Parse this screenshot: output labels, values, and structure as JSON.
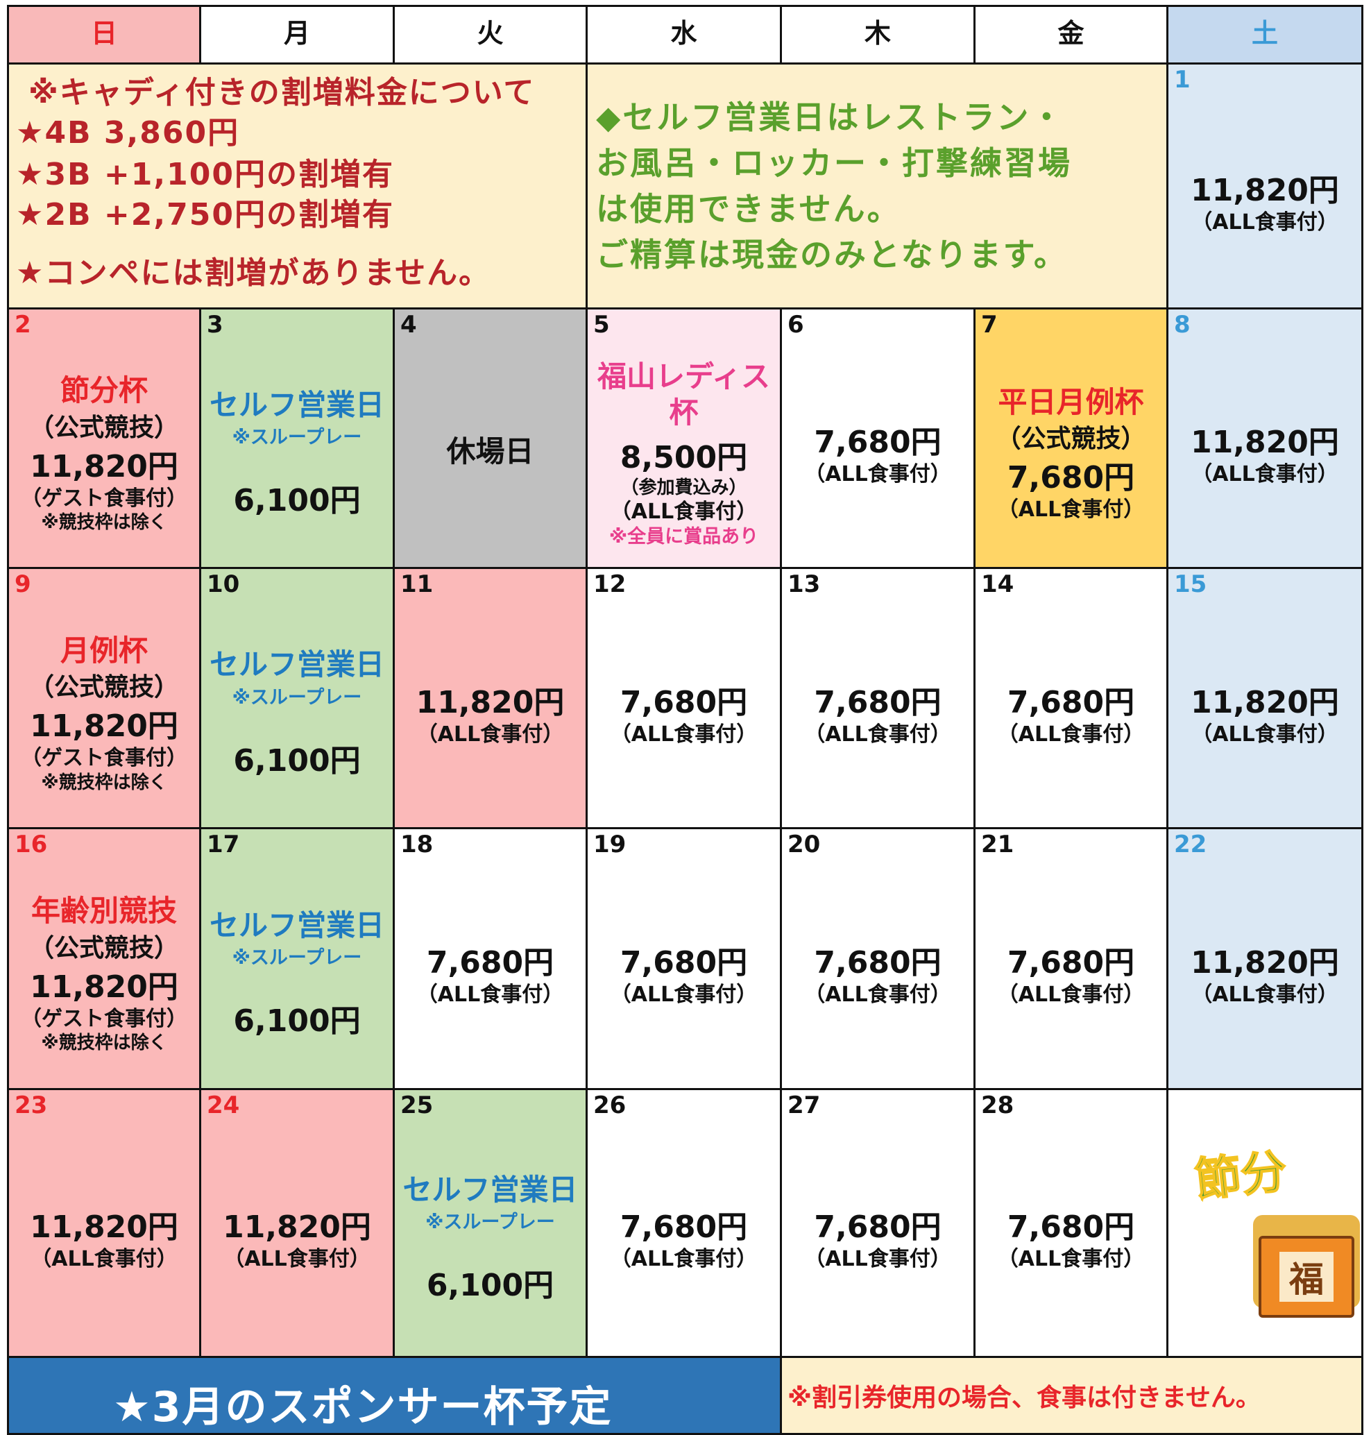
{
  "weekdays": [
    {
      "label": "日",
      "bg": "#f9b9b9",
      "color": "#e8252a"
    },
    {
      "label": "月",
      "bg": "#ffffff",
      "color": "#111111"
    },
    {
      "label": "火",
      "bg": "#ffffff",
      "color": "#111111"
    },
    {
      "label": "水",
      "bg": "#ffffff",
      "color": "#111111"
    },
    {
      "label": "木",
      "bg": "#ffffff",
      "color": "#111111"
    },
    {
      "label": "金",
      "bg": "#ffffff",
      "color": "#111111"
    },
    {
      "label": "土",
      "bg": "#c5d9ef",
      "color": "#3a9ad6"
    }
  ],
  "notice_caddie": [
    "※キャディ付きの割増料金について",
    "★4B 3,860円",
    "★3B +1,100円の割増有",
    "★2B +2,750円の割増有",
    "★コンペには割増がありません。"
  ],
  "notice_self": [
    "◆セルフ営業日はレストラン・",
    "お風呂・ロッカー・打撃練習場",
    "は使用できません。",
    "ご精算は現金のみとなります。"
  ],
  "first_day": {
    "day": "1",
    "bg": "#dbe8f4",
    "day_color": "#3a9ad6",
    "price": "11,820円",
    "meal": "（ALL食事付）"
  },
  "weeks": [
    [
      {
        "day": "2",
        "bg": "#fbb9b9",
        "day_color": "#e8252a",
        "event_color": "#e8252a",
        "event": "節分杯",
        "sub": "（公式競技）",
        "price": "11,820円",
        "meal": "（ゲスト食事付）",
        "note": "※競技枠は除く"
      },
      {
        "day": "3",
        "bg": "#c6e0b4",
        "day_color": "#111111",
        "event_color": "#1f7bc0",
        "event": "セルフ営業日",
        "self_note": "※スループレー",
        "price": "6,100円"
      },
      {
        "day": "4",
        "bg": "#c0c0c0",
        "day_color": "#111111",
        "event_color": "#111111",
        "event": "休場日"
      },
      {
        "day": "5",
        "bg": "#fde6ee",
        "day_color": "#111111",
        "event_color": "#e83e8c",
        "event": "福山レディス杯",
        "price": "8,500円",
        "fee": "（参加費込み）",
        "meal": "（ALL食事付）",
        "prize": "※全員に賞品あり"
      },
      {
        "day": "6",
        "bg": "#ffffff",
        "day_color": "#111111",
        "price": "7,680円",
        "meal": "（ALL食事付）"
      },
      {
        "day": "7",
        "bg": "#ffd566",
        "day_color": "#111111",
        "event_color": "#e8252a",
        "event": "平日月例杯",
        "sub": "（公式競技）",
        "price": "7,680円",
        "meal": "（ALL食事付）"
      },
      {
        "day": "8",
        "bg": "#dbe8f4",
        "day_color": "#3a9ad6",
        "price": "11,820円",
        "meal": "（ALL食事付）"
      }
    ],
    [
      {
        "day": "9",
        "bg": "#fbb9b9",
        "day_color": "#e8252a",
        "event_color": "#e8252a",
        "event": "月例杯",
        "sub": "（公式競技）",
        "price": "11,820円",
        "meal": "（ゲスト食事付）",
        "note": "※競技枠は除く"
      },
      {
        "day": "10",
        "bg": "#c6e0b4",
        "day_color": "#111111",
        "event_color": "#1f7bc0",
        "event": "セルフ営業日",
        "self_note": "※スループレー",
        "price": "6,100円"
      },
      {
        "day": "11",
        "bg": "#fbb9b9",
        "day_color": "#111111",
        "price": "11,820円",
        "meal": "（ALL食事付）"
      },
      {
        "day": "12",
        "bg": "#ffffff",
        "day_color": "#111111",
        "price": "7,680円",
        "meal": "（ALL食事付）"
      },
      {
        "day": "13",
        "bg": "#ffffff",
        "day_color": "#111111",
        "price": "7,680円",
        "meal": "（ALL食事付）"
      },
      {
        "day": "14",
        "bg": "#ffffff",
        "day_color": "#111111",
        "price": "7,680円",
        "meal": "（ALL食事付）"
      },
      {
        "day": "15",
        "bg": "#dbe8f4",
        "day_color": "#3a9ad6",
        "price": "11,820円",
        "meal": "（ALL食事付）"
      }
    ],
    [
      {
        "day": "16",
        "bg": "#fbb9b9",
        "day_color": "#e8252a",
        "event_color": "#e8252a",
        "event": "年齢別競技",
        "sub": "（公式競技）",
        "price": "11,820円",
        "meal": "（ゲスト食事付）",
        "note": "※競技枠は除く"
      },
      {
        "day": "17",
        "bg": "#c6e0b4",
        "day_color": "#111111",
        "event_color": "#1f7bc0",
        "event": "セルフ営業日",
        "self_note": "※スループレー",
        "price": "6,100円"
      },
      {
        "day": "18",
        "bg": "#ffffff",
        "day_color": "#111111",
        "price": "7,680円",
        "meal": "（ALL食事付）"
      },
      {
        "day": "19",
        "bg": "#ffffff",
        "day_color": "#111111",
        "price": "7,680円",
        "meal": "（ALL食事付）"
      },
      {
        "day": "20",
        "bg": "#ffffff",
        "day_color": "#111111",
        "price": "7,680円",
        "meal": "（ALL食事付）"
      },
      {
        "day": "21",
        "bg": "#ffffff",
        "day_color": "#111111",
        "price": "7,680円",
        "meal": "（ALL食事付）"
      },
      {
        "day": "22",
        "bg": "#dbe8f4",
        "day_color": "#3a9ad6",
        "price": "11,820円",
        "meal": "（ALL食事付）"
      }
    ],
    [
      {
        "day": "23",
        "bg": "#fbb9b9",
        "day_color": "#e8252a",
        "price": "11,820円",
        "meal": "（ALL食事付）"
      },
      {
        "day": "24",
        "bg": "#fbb9b9",
        "day_color": "#e8252a",
        "price": "11,820円",
        "meal": "（ALL食事付）"
      },
      {
        "day": "25",
        "bg": "#c6e0b4",
        "day_color": "#111111",
        "event_color": "#1f7bc0",
        "event": "セルフ営業日",
        "self_note": "※スループレー",
        "price": "6,100円"
      },
      {
        "day": "26",
        "bg": "#ffffff",
        "day_color": "#111111",
        "price": "7,680円",
        "meal": "（ALL食事付）"
      },
      {
        "day": "27",
        "bg": "#ffffff",
        "day_color": "#111111",
        "price": "7,680円",
        "meal": "（ALL食事付）"
      },
      {
        "day": "28",
        "bg": "#ffffff",
        "day_color": "#111111",
        "price": "7,680円",
        "meal": "（ALL食事付）"
      },
      {
        "bg": "#ffffff",
        "illustration_title": "節分",
        "illustration_box": "福"
      }
    ]
  ],
  "footer": {
    "sponsor": "★3月のスポンサー杯予定",
    "discount": "※割引券使用の場合、食事は付きません。"
  }
}
